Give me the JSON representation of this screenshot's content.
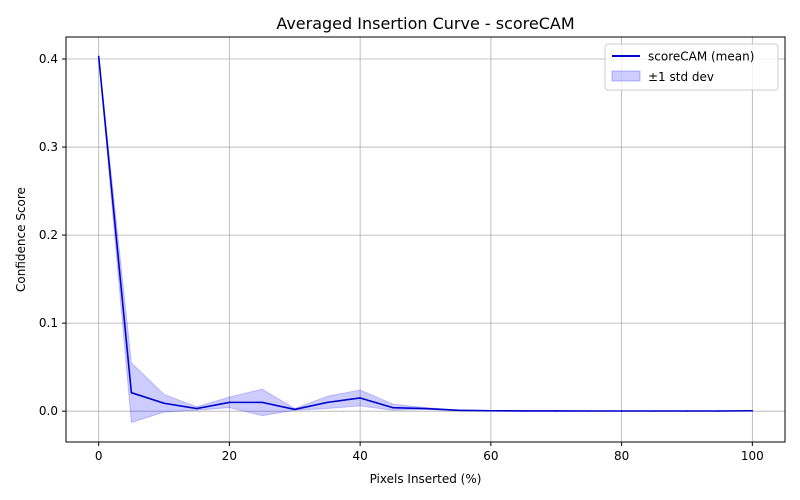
{
  "chart_data": {
    "type": "line",
    "title": "Averaged Insertion Curve - scoreCAM",
    "xlabel": "Pixels Inserted (%)",
    "ylabel": "Confidence Score",
    "xlim": [
      -5,
      105
    ],
    "ylim": [
      -0.035,
      0.425
    ],
    "x_ticks": [
      0,
      20,
      40,
      60,
      80,
      100
    ],
    "y_ticks": [
      0.0,
      0.1,
      0.2,
      0.3,
      0.4
    ],
    "x_tick_labels": [
      "0",
      "20",
      "40",
      "60",
      "80",
      "100"
    ],
    "y_tick_labels": [
      "0.0",
      "0.1",
      "0.2",
      "0.3",
      "0.4"
    ],
    "grid": true,
    "legend_position": "top-right",
    "x": [
      0,
      5,
      10,
      15,
      20,
      25,
      30,
      35,
      40,
      45,
      50,
      55,
      60,
      65,
      70,
      75,
      80,
      85,
      90,
      95,
      100
    ],
    "series": [
      {
        "name": "scoreCAM (mean)",
        "color": "#0000cc",
        "values": [
          0.403,
          0.021,
          0.009,
          0.003,
          0.01,
          0.01,
          0.002,
          0.01,
          0.015,
          0.004,
          0.003,
          0.001,
          0.0005,
          0.0003,
          0.0003,
          0.0002,
          0.0002,
          0.0002,
          0.0002,
          0.0002,
          0.0005
        ]
      }
    ],
    "band": {
      "name": "±1 std dev",
      "color": "#0000ff",
      "lower": [
        0.403,
        -0.013,
        -0.001,
        0.001,
        0.004,
        -0.005,
        0.001,
        0.003,
        0.006,
        0.001,
        0.002,
        0.0005,
        0.0002,
        0.0001,
        0.0001,
        0.0001,
        0.0001,
        0.0001,
        0.0001,
        0.0001,
        0.0002
      ],
      "upper": [
        0.403,
        0.055,
        0.019,
        0.005,
        0.016,
        0.025,
        0.003,
        0.017,
        0.024,
        0.008,
        0.004,
        0.0015,
        0.0008,
        0.0005,
        0.0005,
        0.0003,
        0.0003,
        0.0003,
        0.0003,
        0.0003,
        0.0008
      ]
    }
  }
}
